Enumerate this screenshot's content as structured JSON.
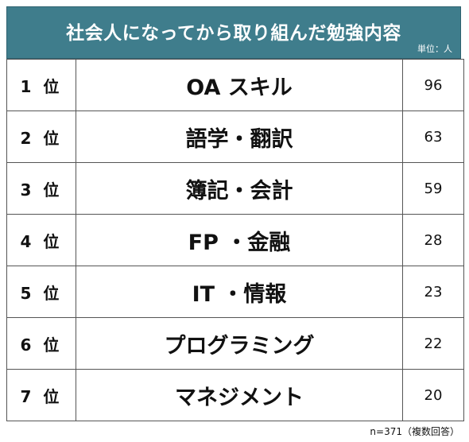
{
  "chart_data": {
    "type": "table",
    "title": "社会人になってから取り組んだ勉強内容",
    "unit_label": "単位：人",
    "note": "n=371（複数回答）",
    "colors": {
      "header_bg": "#3f7d8c",
      "header_text": "#ffffff",
      "border": "#555555"
    },
    "rows": [
      {
        "rank": "1 位",
        "item": "OA スキル",
        "value": "96"
      },
      {
        "rank": "2 位",
        "item": "語学・翻訳",
        "value": "63"
      },
      {
        "rank": "3 位",
        "item": "簿記・会計",
        "value": "59"
      },
      {
        "rank": "4 位",
        "item": "FP ・金融",
        "value": "28"
      },
      {
        "rank": "5 位",
        "item": "IT ・情報",
        "value": "23"
      },
      {
        "rank": "6 位",
        "item": "プログラミング",
        "value": "22"
      },
      {
        "rank": "7 位",
        "item": "マネジメント",
        "value": "20"
      }
    ]
  }
}
